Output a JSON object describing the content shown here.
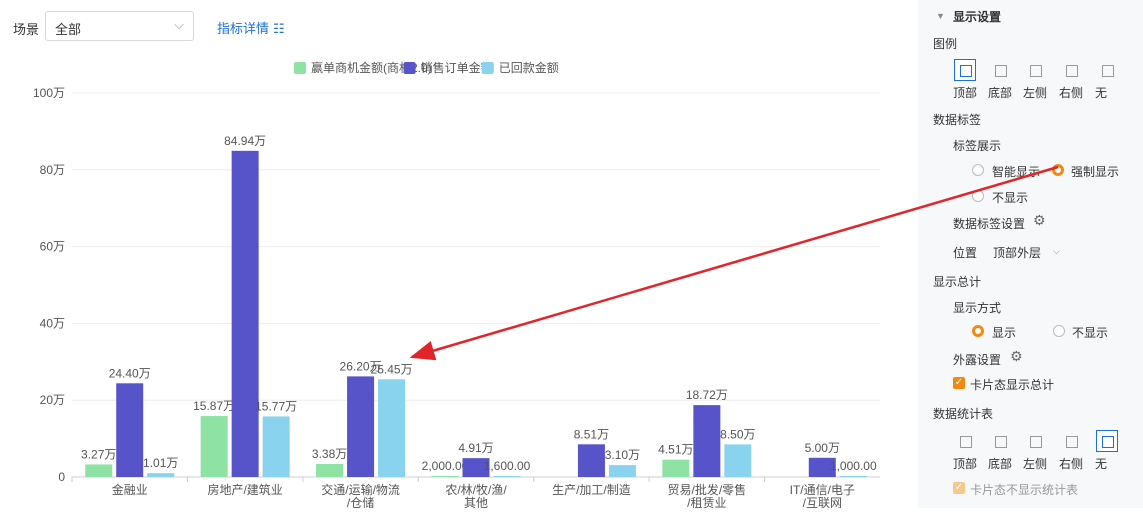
{
  "toolbar": {
    "scene_label": "场景",
    "scene_value": "全部",
    "metric_link": "指标详情"
  },
  "chart_data": {
    "type": "bar",
    "categories": [
      [
        "金融业"
      ],
      [
        "房地产/建筑业"
      ],
      [
        "交通/运输/物流",
        "/仓储"
      ],
      [
        "农/林/牧/渔/",
        "其他"
      ],
      [
        "生产/加工/制造"
      ],
      [
        "贸易/批发/零售",
        "/租赁业"
      ],
      [
        "IT/通信/电子",
        "/互联网"
      ]
    ],
    "series": [
      {
        "name": "赢单商机金额(商机2.0)",
        "color": "#8ee2a4",
        "values": [
          3.27,
          15.87,
          3.38,
          0.2,
          0,
          4.51,
          0
        ],
        "labels": [
          "3.27万",
          "15.87万",
          "3.38万",
          "2,000.00",
          "",
          "4.51万",
          ""
        ]
      },
      {
        "name": "销售订单金额",
        "color": "#5654c8",
        "values": [
          24.4,
          84.94,
          26.2,
          4.91,
          8.51,
          18.72,
          5.0
        ],
        "labels": [
          "24.40万",
          "84.94万",
          "26.20万",
          "4.91万",
          "8.51万",
          "18.72万",
          "5.00万"
        ]
      },
      {
        "name": "已回款金额",
        "color": "#8ad3ef",
        "values": [
          1.01,
          15.77,
          25.45,
          0.16,
          3.1,
          8.5,
          0.1
        ],
        "labels": [
          "1.01万",
          "15.77万",
          "25.45万",
          "1,600.00",
          "3.10万",
          "8.50万",
          "1,000.00"
        ]
      }
    ],
    "yticks": [
      "0",
      "20万",
      "40万",
      "60万",
      "80万",
      "100万"
    ],
    "ylim": [
      0,
      100
    ],
    "grid": true,
    "legend_position": "top"
  },
  "panel": {
    "title": "显示设置",
    "legend_label": "图例",
    "legend_options": [
      "顶部",
      "底部",
      "左侧",
      "右侧",
      "无"
    ],
    "legend_selected": 0,
    "data_label_title": "数据标签",
    "label_show_title": "标签展示",
    "label_opt_smart": "智能显示",
    "label_opt_force": "强制显示",
    "label_opt_none": "不显示",
    "label_settings": "数据标签设置",
    "position_label": "位置",
    "position_value": "顶部外层",
    "total_title": "显示总计",
    "show_mode": "显示方式",
    "show_yes": "显示",
    "show_no": "不显示",
    "expose_settings": "外露设置",
    "card_total": "卡片态显示总计",
    "stat_title": "数据统计表",
    "stat_options": [
      "顶部",
      "底部",
      "左侧",
      "右侧",
      "无"
    ],
    "stat_selected": 4,
    "card_hide_stat": "卡片态不显示统计表"
  },
  "colors": {
    "accent": "#1e6fd9",
    "orange": "#f08a12",
    "arrow": "#e0262b"
  }
}
